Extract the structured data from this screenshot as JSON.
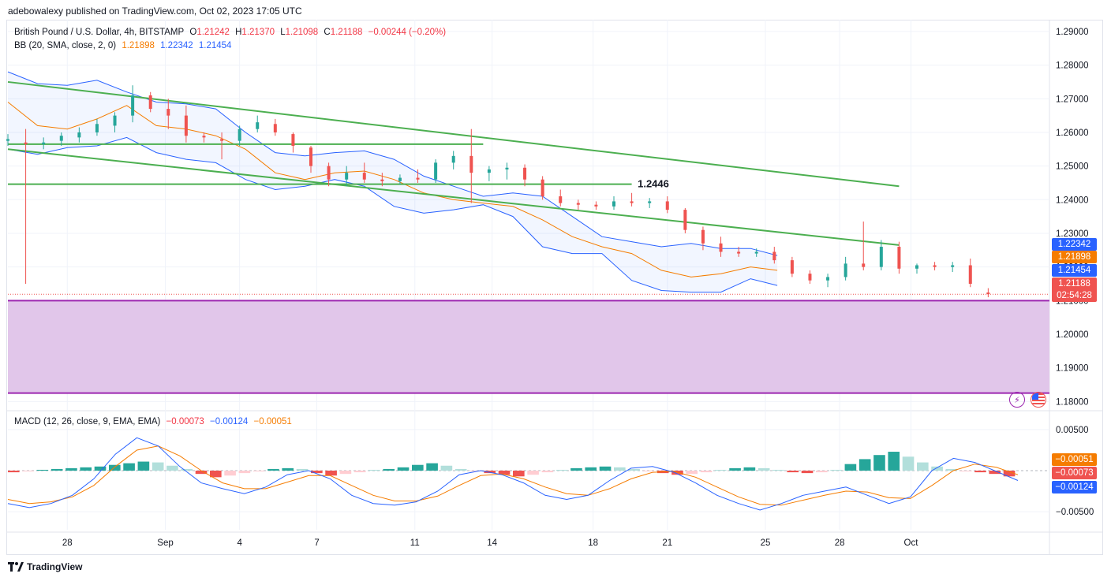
{
  "header": {
    "published": "adebowalexy published on TradingView.com, Oct 02, 2023 17:05 UTC"
  },
  "legend": {
    "symbol": "British Pound / U.S. Dollar, 4h, BITSTAMP",
    "o_label": "O",
    "o_value": "1.21242",
    "h_label": "H",
    "h_value": "1.21370",
    "l_label": "L",
    "l_value": "1.21098",
    "c_label": "C",
    "c_value": "1.21188",
    "change": "−0.00244 (−0.20%)",
    "bb_label": "BB (20, SMA, close, 2, 0)",
    "bb_basis": "1.21898",
    "bb_upper": "1.22342",
    "bb_lower": "1.21454"
  },
  "macd_legend": {
    "label": "MACD (12, 26, close, 9, EMA, EMA)",
    "hist": "−0.00073",
    "macd": "−0.00124",
    "signal": "−0.00051"
  },
  "price_tags": {
    "upper": "1.22342",
    "basis": "1.21898",
    "lower": "1.21454",
    "last": "1.21188",
    "countdown": "02:54:28"
  },
  "macd_tags": {
    "signal": "−0.00051",
    "hist": "−0.00073",
    "macd": "−0.00124"
  },
  "annotation": "1.2446",
  "footer": {
    "brand": "TradingView"
  },
  "icons": {
    "lightning": "lightning-icon",
    "flag": "us-flag-icon",
    "logo": "tradingview-logo-icon"
  },
  "colors": {
    "up": "#26a69a",
    "down": "#ef5350",
    "bb_basis": "#f57c00",
    "bb_band": "#2962ff",
    "trend": "#4caf50",
    "zone_fill": "#e1c6ea",
    "zone_line": "#9c27b0",
    "macd_line": "#2962ff",
    "signal_line": "#f57c00"
  },
  "chart_data": [
    {
      "type": "candlestick",
      "title": "British Pound / U.S. Dollar, 4h, BITSTAMP",
      "y_ticks": [
        "1.29000",
        "1.28000",
        "1.27000",
        "1.26000",
        "1.25000",
        "1.24000",
        "1.23000",
        "1.22000",
        "1.21000",
        "1.20000",
        "1.19000",
        "1.18000"
      ],
      "ylim": [
        1.1775,
        1.2935
      ],
      "x_ticks": [
        "28",
        "Sep",
        "4",
        "7",
        "11",
        "14",
        "18",
        "21",
        "25",
        "28",
        "Oct"
      ],
      "series": [
        {
          "name": "BB (20, SMA, close, 2, 0)",
          "kind": "bollinger",
          "points": [
            {
              "x": 0,
              "upper": 1.278,
              "basis": 1.269,
              "lower": 1.255
            },
            {
              "x": 10,
              "upper": 1.2745,
              "basis": 1.262,
              "lower": 1.2535
            },
            {
              "x": 20,
              "upper": 1.274,
              "basis": 1.261,
              "lower": 1.2555
            },
            {
              "x": 30,
              "upper": 1.2755,
              "basis": 1.264,
              "lower": 1.256
            },
            {
              "x": 40,
              "upper": 1.272,
              "basis": 1.268,
              "lower": 1.2585
            },
            {
              "x": 50,
              "upper": 1.269,
              "basis": 1.262,
              "lower": 1.254
            },
            {
              "x": 60,
              "upper": 1.2685,
              "basis": 1.261,
              "lower": 1.252
            },
            {
              "x": 70,
              "upper": 1.267,
              "basis": 1.259,
              "lower": 1.251
            },
            {
              "x": 80,
              "upper": 1.26,
              "basis": 1.255,
              "lower": 1.246
            },
            {
              "x": 90,
              "upper": 1.254,
              "basis": 1.248,
              "lower": 1.243
            },
            {
              "x": 100,
              "upper": 1.253,
              "basis": 1.246,
              "lower": 1.244
            },
            {
              "x": 110,
              "upper": 1.254,
              "basis": 1.248,
              "lower": 1.246
            },
            {
              "x": 120,
              "upper": 1.2545,
              "basis": 1.2485,
              "lower": 1.244
            },
            {
              "x": 130,
              "upper": 1.252,
              "basis": 1.246,
              "lower": 1.238
            },
            {
              "x": 140,
              "upper": 1.247,
              "basis": 1.242,
              "lower": 1.236
            },
            {
              "x": 150,
              "upper": 1.244,
              "basis": 1.24,
              "lower": 1.237
            },
            {
              "x": 160,
              "upper": 1.241,
              "basis": 1.239,
              "lower": 1.2385
            },
            {
              "x": 170,
              "upper": 1.242,
              "basis": 1.238,
              "lower": 1.235
            },
            {
              "x": 180,
              "upper": 1.241,
              "basis": 1.234,
              "lower": 1.226
            },
            {
              "x": 190,
              "upper": 1.235,
              "basis": 1.229,
              "lower": 1.224
            },
            {
              "x": 200,
              "upper": 1.229,
              "basis": 1.226,
              "lower": 1.224
            },
            {
              "x": 210,
              "upper": 1.2275,
              "basis": 1.224,
              "lower": 1.216
            },
            {
              "x": 220,
              "upper": 1.226,
              "basis": 1.219,
              "lower": 1.213
            },
            {
              "x": 230,
              "upper": 1.227,
              "basis": 1.217,
              "lower": 1.2125
            },
            {
              "x": 240,
              "upper": 1.2255,
              "basis": 1.218,
              "lower": 1.2125
            },
            {
              "x": 250,
              "upper": 1.2255,
              "basis": 1.22,
              "lower": 1.2165
            },
            {
              "x": 259,
              "upper": 1.2234,
              "basis": 1.219,
              "lower": 1.2145
            }
          ]
        },
        {
          "name": "GBPUSD 4h",
          "kind": "ohlc",
          "candles": [
            {
              "x": 0,
              "o": 1.2575,
              "h": 1.2595,
              "l": 1.256,
              "c": 1.258
            },
            {
              "x": 6,
              "o": 1.257,
              "h": 1.261,
              "l": 1.215,
              "c": 1.2565
            },
            {
              "x": 12,
              "o": 1.2565,
              "h": 1.2585,
              "l": 1.255,
              "c": 1.257
            },
            {
              "x": 18,
              "o": 1.2575,
              "h": 1.26,
              "l": 1.256,
              "c": 1.259
            },
            {
              "x": 24,
              "o": 1.2585,
              "h": 1.2615,
              "l": 1.257,
              "c": 1.26
            },
            {
              "x": 30,
              "o": 1.26,
              "h": 1.264,
              "l": 1.259,
              "c": 1.2625
            },
            {
              "x": 36,
              "o": 1.262,
              "h": 1.266,
              "l": 1.26,
              "c": 1.265
            },
            {
              "x": 42,
              "o": 1.265,
              "h": 1.274,
              "l": 1.263,
              "c": 1.271
            },
            {
              "x": 48,
              "o": 1.271,
              "h": 1.272,
              "l": 1.266,
              "c": 1.267
            },
            {
              "x": 54,
              "o": 1.267,
              "h": 1.27,
              "l": 1.261,
              "c": 1.265
            },
            {
              "x": 60,
              "o": 1.265,
              "h": 1.268,
              "l": 1.257,
              "c": 1.259
            },
            {
              "x": 66,
              "o": 1.259,
              "h": 1.26,
              "l": 1.257,
              "c": 1.2585
            },
            {
              "x": 72,
              "o": 1.258,
              "h": 1.26,
              "l": 1.252,
              "c": 1.2575
            },
            {
              "x": 78,
              "o": 1.2575,
              "h": 1.262,
              "l": 1.256,
              "c": 1.261
            },
            {
              "x": 84,
              "o": 1.261,
              "h": 1.265,
              "l": 1.26,
              "c": 1.263
            },
            {
              "x": 90,
              "o": 1.2625,
              "h": 1.264,
              "l": 1.259,
              "c": 1.26
            },
            {
              "x": 96,
              "o": 1.2595,
              "h": 1.26,
              "l": 1.254,
              "c": 1.256
            },
            {
              "x": 102,
              "o": 1.2555,
              "h": 1.256,
              "l": 1.248,
              "c": 1.25
            },
            {
              "x": 108,
              "o": 1.25,
              "h": 1.251,
              "l": 1.244,
              "c": 1.246
            },
            {
              "x": 114,
              "o": 1.246,
              "h": 1.25,
              "l": 1.244,
              "c": 1.248
            },
            {
              "x": 120,
              "o": 1.248,
              "h": 1.251,
              "l": 1.245,
              "c": 1.246
            },
            {
              "x": 126,
              "o": 1.246,
              "h": 1.248,
              "l": 1.244,
              "c": 1.2455
            },
            {
              "x": 132,
              "o": 1.2455,
              "h": 1.2475,
              "l": 1.2445,
              "c": 1.2465
            },
            {
              "x": 138,
              "o": 1.2465,
              "h": 1.249,
              "l": 1.245,
              "c": 1.246
            },
            {
              "x": 144,
              "o": 1.246,
              "h": 1.252,
              "l": 1.245,
              "c": 1.251
            },
            {
              "x": 150,
              "o": 1.251,
              "h": 1.2545,
              "l": 1.249,
              "c": 1.253
            },
            {
              "x": 156,
              "o": 1.253,
              "h": 1.261,
              "l": 1.239,
              "c": 1.248
            },
            {
              "x": 162,
              "o": 1.248,
              "h": 1.25,
              "l": 1.2455,
              "c": 1.249
            },
            {
              "x": 168,
              "o": 1.249,
              "h": 1.251,
              "l": 1.246,
              "c": 1.2495
            },
            {
              "x": 174,
              "o": 1.2495,
              "h": 1.2505,
              "l": 1.244,
              "c": 1.246
            },
            {
              "x": 180,
              "o": 1.246,
              "h": 1.247,
              "l": 1.24,
              "c": 1.241
            },
            {
              "x": 186,
              "o": 1.241,
              "h": 1.243,
              "l": 1.238,
              "c": 1.239
            },
            {
              "x": 192,
              "o": 1.239,
              "h": 1.24,
              "l": 1.237,
              "c": 1.2385
            },
            {
              "x": 198,
              "o": 1.2385,
              "h": 1.2395,
              "l": 1.237,
              "c": 1.238
            },
            {
              "x": 204,
              "o": 1.238,
              "h": 1.241,
              "l": 1.237,
              "c": 1.2395
            },
            {
              "x": 210,
              "o": 1.2395,
              "h": 1.242,
              "l": 1.238,
              "c": 1.239
            },
            {
              "x": 216,
              "o": 1.239,
              "h": 1.2405,
              "l": 1.2375,
              "c": 1.2395
            },
            {
              "x": 222,
              "o": 1.2395,
              "h": 1.241,
              "l": 1.236,
              "c": 1.237
            },
            {
              "x": 228,
              "o": 1.237,
              "h": 1.2375,
              "l": 1.23,
              "c": 1.231
            },
            {
              "x": 234,
              "o": 1.231,
              "h": 1.232,
              "l": 1.225,
              "c": 1.227
            },
            {
              "x": 240,
              "o": 1.227,
              "h": 1.229,
              "l": 1.223,
              "c": 1.2245
            },
            {
              "x": 246,
              "o": 1.2245,
              "h": 1.226,
              "l": 1.223,
              "c": 1.224
            },
            {
              "x": 252,
              "o": 1.224,
              "h": 1.2255,
              "l": 1.223,
              "c": 1.2245
            },
            {
              "x": 258,
              "o": 1.2245,
              "h": 1.226,
              "l": 1.221,
              "c": 1.222
            },
            {
              "x": 264,
              "o": 1.222,
              "h": 1.223,
              "l": 1.217,
              "c": 1.218
            },
            {
              "x": 270,
              "o": 1.218,
              "h": 1.219,
              "l": 1.215,
              "c": 1.216
            },
            {
              "x": 276,
              "o": 1.216,
              "h": 1.218,
              "l": 1.214,
              "c": 1.217
            },
            {
              "x": 282,
              "o": 1.217,
              "h": 1.223,
              "l": 1.216,
              "c": 1.221
            },
            {
              "x": 288,
              "o": 1.221,
              "h": 1.2335,
              "l": 1.219,
              "c": 1.22
            },
            {
              "x": 294,
              "o": 1.22,
              "h": 1.228,
              "l": 1.219,
              "c": 1.226
            },
            {
              "x": 300,
              "o": 1.226,
              "h": 1.2275,
              "l": 1.218,
              "c": 1.2195
            },
            {
              "x": 306,
              "o": 1.2195,
              "h": 1.221,
              "l": 1.218,
              "c": 1.2205
            },
            {
              "x": 312,
              "o": 1.2205,
              "h": 1.2215,
              "l": 1.219,
              "c": 1.22
            },
            {
              "x": 318,
              "o": 1.22,
              "h": 1.2215,
              "l": 1.2185,
              "c": 1.2205
            },
            {
              "x": 324,
              "o": 1.2205,
              "h": 1.2225,
              "l": 1.214,
              "c": 1.215
            },
            {
              "x": 330,
              "o": 1.2124,
              "h": 1.2137,
              "l": 1.211,
              "c": 1.2119
            }
          ]
        }
      ],
      "horizontal_lines": [
        {
          "value": 1.2565,
          "color": "#4caf50"
        },
        {
          "value": 1.2446,
          "color": "#4caf50",
          "label": "1.2446"
        },
        {
          "value": 1.2119,
          "color": "#ef5350",
          "style": "dotted"
        }
      ],
      "trend_lines": [
        {
          "from": [
            0,
            1.275
          ],
          "to": [
            300,
            1.244
          ],
          "color": "#4caf50"
        },
        {
          "from": [
            0,
            1.255
          ],
          "to": [
            300,
            1.2265
          ],
          "color": "#4caf50"
        }
      ],
      "zones": [
        {
          "from": 1.21,
          "to": 1.1825,
          "fill": "#e1c6ea",
          "border": "#9c27b0"
        }
      ],
      "grid": true
    },
    {
      "type": "bar",
      "title": "MACD (12, 26, close, 9, EMA, EMA)",
      "y_ticks": [
        "0.00500",
        "−0.00500"
      ],
      "ylim": [
        -0.0072,
        0.0072
      ],
      "series": [
        {
          "name": "Histogram",
          "values": [
            -0.0002,
            -0.0001,
            0.0001,
            0.0002,
            0.0003,
            0.0004,
            0.0005,
            0.0007,
            0.0009,
            0.0011,
            0.001,
            0.0006,
            0.0002,
            -0.0004,
            -0.0008,
            -0.0006,
            -0.0003,
            -0.0001,
            0.0002,
            0.0003,
            0.0002,
            -0.0003,
            -0.0006,
            -0.0004,
            -0.0002,
            0.0001,
            0.0002,
            0.0004,
            0.0007,
            0.0009,
            0.0006,
            0.0002,
            -0.0001,
            -0.0003,
            -0.0005,
            -0.0007,
            -0.0005,
            -0.0002,
            0.0001,
            0.0003,
            0.0004,
            0.0005,
            0.0004,
            0.0002,
            -0.0001,
            -0.0003,
            -0.0005,
            -0.0004,
            -0.0002,
            0.0001,
            0.0003,
            0.0004,
            0.0003,
            0.0001,
            -0.0002,
            -0.0003,
            -0.0002,
            0.0001,
            0.0008,
            0.0014,
            0.0019,
            0.0023,
            0.0017,
            0.001,
            0.0005,
            0.0002,
            -0.0001,
            -0.0002,
            -0.0004,
            -0.0007
          ]
        },
        {
          "name": "MACD",
          "values": [
            -0.004,
            -0.0045,
            -0.004,
            -0.003,
            -0.001,
            0.002,
            0.004,
            0.003,
            0.0005,
            -0.0015,
            -0.0022,
            -0.0028,
            -0.002,
            -0.0005,
            0.0,
            -0.001,
            -0.003,
            -0.004,
            -0.0042,
            -0.0038,
            -0.0025,
            -0.0005,
            0.0,
            -0.0005,
            -0.0015,
            -0.003,
            -0.0035,
            -0.003,
            -0.0012,
            0.0003,
            0.0005,
            -0.0002,
            -0.0015,
            -0.003,
            -0.004,
            -0.0048,
            -0.004,
            -0.003,
            -0.0025,
            -0.002,
            -0.003,
            -0.004,
            -0.0032,
            0.0,
            0.0015,
            0.001,
            -0.0001,
            -0.0012
          ]
        },
        {
          "name": "Signal",
          "values": [
            -0.0035,
            -0.004,
            -0.0038,
            -0.0032,
            -0.0018,
            0.0005,
            0.0025,
            0.003,
            0.0018,
            0.0,
            -0.0015,
            -0.0022,
            -0.0022,
            -0.0014,
            -0.0006,
            -0.0006,
            -0.0018,
            -0.003,
            -0.0037,
            -0.0037,
            -0.0031,
            -0.0018,
            -0.0006,
            -0.0004,
            -0.001,
            -0.002,
            -0.0028,
            -0.003,
            -0.0022,
            -0.001,
            -0.0002,
            -0.0001,
            -0.0008,
            -0.002,
            -0.0032,
            -0.0041,
            -0.0042,
            -0.0036,
            -0.003,
            -0.0025,
            -0.0026,
            -0.0033,
            -0.0034,
            -0.0018,
            0.0,
            0.0008,
            0.0004,
            -0.0005
          ]
        }
      ]
    }
  ]
}
